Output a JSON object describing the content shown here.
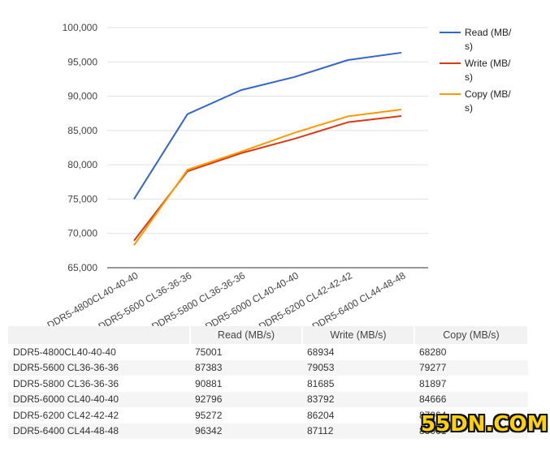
{
  "chart_data": {
    "type": "line",
    "categories": [
      "DDR5-4800CL40-40-40",
      "DDR5-5600 CL36-36-36",
      "DDR5-5800 CL36-36-36",
      "DDR5-6000 CL40-40-40",
      "DDR5-6200 CL42-42-42",
      "DDR5-6400 CL44-48-48"
    ],
    "series": [
      {
        "name": "Read (MB/s)",
        "legend_lines": [
          "Read (MB/",
          "s)"
        ],
        "color": "#3366cc",
        "values": [
          75001,
          87383,
          90881,
          92796,
          95272,
          96342
        ]
      },
      {
        "name": "Write (MB/s)",
        "legend_lines": [
          "Write (MB/",
          "s)"
        ],
        "color": "#dc3912",
        "values": [
          68934,
          79053,
          81685,
          83792,
          86204,
          87112
        ]
      },
      {
        "name": "Copy (MB/s)",
        "legend_lines": [
          "Copy (MB/",
          "s)"
        ],
        "color": "#ff9900",
        "values": [
          68280,
          79277,
          81897,
          84666,
          87064,
          88061
        ]
      }
    ],
    "y_ticks": [
      "65,000",
      "70,000",
      "75,000",
      "80,000",
      "85,000",
      "90,000",
      "95,000",
      "100,000"
    ],
    "ylim": [
      65000,
      100000
    ],
    "grid": true,
    "legend_position": "right"
  },
  "table": {
    "headers": [
      "",
      "Read (MB/s)",
      "Write (MB/s)",
      "Copy (MB/s)"
    ],
    "rows": [
      [
        "DDR5-4800CL40-40-40",
        "75001",
        "68934",
        "68280"
      ],
      [
        "DDR5-5600 CL36-36-36",
        "87383",
        "79053",
        "79277"
      ],
      [
        "DDR5-5800 CL36-36-36",
        "90881",
        "81685",
        "81897"
      ],
      [
        "DDR5-6000 CL40-40-40",
        "92796",
        "83792",
        "84666"
      ],
      [
        "DDR5-6200 CL42-42-42",
        "95272",
        "86204",
        "87064"
      ],
      [
        "DDR5-6400 CL44-48-48",
        "96342",
        "87112",
        "88061"
      ]
    ]
  },
  "watermark": "55DN.COM"
}
